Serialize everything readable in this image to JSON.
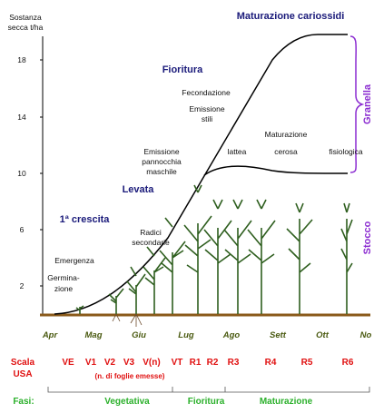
{
  "axis_title": [
    "Sostanza",
    "secca t/ha"
  ],
  "yticks": [
    "18",
    "14",
    "10",
    "6",
    "2"
  ],
  "months": [
    "Apr",
    "Mag",
    "Giu",
    "Lug",
    "Ago",
    "Sett",
    "Ott",
    "No"
  ],
  "annotations": {
    "maturazione_cariossidi": "Maturazione cariossidi",
    "fioritura": "Fioritura",
    "fecondazione": "Fecondazione",
    "emissione_stili": [
      "Emissione",
      "stili"
    ],
    "emissione_pannocchia": [
      "Emissione",
      "pannocchia",
      "maschile"
    ],
    "levata": "Levata",
    "prima_crescita": "1ª crescita",
    "radici": [
      "Radici",
      "secondarie"
    ],
    "emergenza": "Emergenza",
    "germinazione": [
      "Germina-",
      "zione"
    ],
    "lattea": "lattea",
    "cerosa": [
      "Maturazione",
      "cerosa"
    ],
    "fisiologica": "fisiologica",
    "granella": "Granella",
    "stocco": "Stocco"
  },
  "scale": {
    "label": [
      "Scala",
      "USA"
    ],
    "stages": [
      "VE",
      "V1",
      "V2",
      "V3",
      "V(n)",
      "VT",
      "R1",
      "R2",
      "R3",
      "R4",
      "R5",
      "R6"
    ],
    "note": "(n. di foglie emesse)"
  },
  "phases": {
    "label": "Fasi:",
    "items": [
      "Vegetativa",
      "Fioritura",
      "Maturazione"
    ]
  }
}
